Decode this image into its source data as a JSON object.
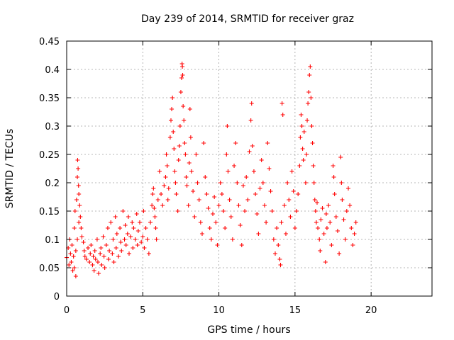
{
  "chart_data": {
    "type": "scatter",
    "title": "Day 239 of 2014, SRMTID for receiver graz",
    "xlabel": "GPS time / hours",
    "ylabel": "SRMTID / TECUs",
    "xlim": [
      0,
      24
    ],
    "ylim": [
      0,
      0.45
    ],
    "xticks": [
      0,
      5,
      10,
      15,
      20
    ],
    "xtick_labels": [
      "0",
      "5",
      "10",
      "15",
      "20"
    ],
    "yticks": [
      0,
      0.05,
      0.1,
      0.15,
      0.2,
      0.25,
      0.3,
      0.35,
      0.4,
      0.45
    ],
    "ytick_labels": [
      "0",
      "0.05",
      "0.1",
      "0.15",
      "0.2",
      "0.25",
      "0.3",
      "0.35",
      "0.4",
      "0.45"
    ],
    "grid": true,
    "marker": "plus",
    "color": "#ff0000",
    "series": [
      {
        "name": "SRMTID",
        "points": [
          [
            0.0,
            0.068
          ],
          [
            0.1,
            0.085
          ],
          [
            0.15,
            0.055
          ],
          [
            0.2,
            0.1
          ],
          [
            0.25,
            0.075
          ],
          [
            0.3,
            0.06
          ],
          [
            0.35,
            0.09
          ],
          [
            0.4,
            0.045
          ],
          [
            0.45,
            0.07
          ],
          [
            0.5,
            0.12
          ],
          [
            0.5,
            0.05
          ],
          [
            0.55,
            0.15
          ],
          [
            0.6,
            0.08
          ],
          [
            0.6,
            0.035
          ],
          [
            0.65,
            0.17
          ],
          [
            0.7,
            0.21
          ],
          [
            0.7,
            0.1
          ],
          [
            0.72,
            0.24
          ],
          [
            0.75,
            0.225
          ],
          [
            0.78,
            0.195
          ],
          [
            0.8,
            0.18
          ],
          [
            0.8,
            0.13
          ],
          [
            0.85,
            0.16
          ],
          [
            0.9,
            0.14
          ],
          [
            0.95,
            0.12
          ],
          [
            1.0,
            0.105
          ],
          [
            1.1,
            0.095
          ],
          [
            1.15,
            0.08
          ],
          [
            1.2,
            0.07
          ],
          [
            1.3,
            0.065
          ],
          [
            1.4,
            0.085
          ],
          [
            1.5,
            0.06
          ],
          [
            1.55,
            0.075
          ],
          [
            1.6,
            0.09
          ],
          [
            1.7,
            0.055
          ],
          [
            1.75,
            0.07
          ],
          [
            1.8,
            0.045
          ],
          [
            1.85,
            0.08
          ],
          [
            1.9,
            0.065
          ],
          [
            2.0,
            0.1
          ],
          [
            2.05,
            0.06
          ],
          [
            2.1,
            0.04
          ],
          [
            2.2,
            0.075
          ],
          [
            2.25,
            0.085
          ],
          [
            2.3,
            0.055
          ],
          [
            2.4,
            0.105
          ],
          [
            2.45,
            0.07
          ],
          [
            2.5,
            0.05
          ],
          [
            2.6,
            0.09
          ],
          [
            2.7,
            0.12
          ],
          [
            2.75,
            0.065
          ],
          [
            2.8,
            0.08
          ],
          [
            2.9,
            0.13
          ],
          [
            3.0,
            0.075
          ],
          [
            3.05,
            0.1
          ],
          [
            3.1,
            0.06
          ],
          [
            3.2,
            0.14
          ],
          [
            3.25,
            0.085
          ],
          [
            3.3,
            0.11
          ],
          [
            3.4,
            0.07
          ],
          [
            3.5,
            0.12
          ],
          [
            3.55,
            0.095
          ],
          [
            3.6,
            0.08
          ],
          [
            3.7,
            0.15
          ],
          [
            3.8,
            0.1
          ],
          [
            3.85,
            0.125
          ],
          [
            3.9,
            0.09
          ],
          [
            4.0,
            0.11
          ],
          [
            4.05,
            0.14
          ],
          [
            4.1,
            0.075
          ],
          [
            4.2,
            0.105
          ],
          [
            4.3,
            0.13
          ],
          [
            4.35,
            0.085
          ],
          [
            4.4,
            0.12
          ],
          [
            4.5,
            0.1
          ],
          [
            4.6,
            0.145
          ],
          [
            4.65,
            0.09
          ],
          [
            4.7,
            0.115
          ],
          [
            4.8,
            0.13
          ],
          [
            4.9,
            0.095
          ],
          [
            5.0,
            0.105
          ],
          [
            5.05,
            0.15
          ],
          [
            5.1,
            0.085
          ],
          [
            5.2,
            0.12
          ],
          [
            5.3,
            0.1
          ],
          [
            5.4,
            0.075
          ],
          [
            5.5,
            0.13
          ],
          [
            5.6,
            0.16
          ],
          [
            5.65,
            0.18
          ],
          [
            5.7,
            0.19
          ],
          [
            5.75,
            0.155
          ],
          [
            5.8,
            0.14
          ],
          [
            5.85,
            0.12
          ],
          [
            5.9,
            0.1
          ],
          [
            6.0,
            0.17
          ],
          [
            6.1,
            0.22
          ],
          [
            6.2,
            0.18
          ],
          [
            6.3,
            0.16
          ],
          [
            6.4,
            0.195
          ],
          [
            6.5,
            0.21
          ],
          [
            6.55,
            0.25
          ],
          [
            6.6,
            0.23
          ],
          [
            6.65,
            0.17
          ],
          [
            6.7,
            0.19
          ],
          [
            6.8,
            0.28
          ],
          [
            6.85,
            0.31
          ],
          [
            6.9,
            0.33
          ],
          [
            6.95,
            0.35
          ],
          [
            7.0,
            0.29
          ],
          [
            7.05,
            0.26
          ],
          [
            7.1,
            0.22
          ],
          [
            7.15,
            0.2
          ],
          [
            7.2,
            0.18
          ],
          [
            7.3,
            0.15
          ],
          [
            7.35,
            0.24
          ],
          [
            7.4,
            0.265
          ],
          [
            7.45,
            0.3
          ],
          [
            7.5,
            0.36
          ],
          [
            7.55,
            0.385
          ],
          [
            7.58,
            0.41
          ],
          [
            7.6,
            0.405
          ],
          [
            7.62,
            0.39
          ],
          [
            7.65,
            0.335
          ],
          [
            7.7,
            0.31
          ],
          [
            7.75,
            0.27
          ],
          [
            7.8,
            0.25
          ],
          [
            7.85,
            0.21
          ],
          [
            7.9,
            0.195
          ],
          [
            8.0,
            0.16
          ],
          [
            8.05,
            0.235
          ],
          [
            8.1,
            0.33
          ],
          [
            8.15,
            0.28
          ],
          [
            8.2,
            0.22
          ],
          [
            8.3,
            0.185
          ],
          [
            8.4,
            0.14
          ],
          [
            8.5,
            0.25
          ],
          [
            8.6,
            0.2
          ],
          [
            8.7,
            0.17
          ],
          [
            8.8,
            0.13
          ],
          [
            8.9,
            0.11
          ],
          [
            9.0,
            0.27
          ],
          [
            9.1,
            0.21
          ],
          [
            9.2,
            0.18
          ],
          [
            9.3,
            0.155
          ],
          [
            9.4,
            0.12
          ],
          [
            9.5,
            0.1
          ],
          [
            9.6,
            0.145
          ],
          [
            9.7,
            0.175
          ],
          [
            9.8,
            0.13
          ],
          [
            9.9,
            0.09
          ],
          [
            10.0,
            0.16
          ],
          [
            10.1,
            0.2
          ],
          [
            10.2,
            0.18
          ],
          [
            10.3,
            0.15
          ],
          [
            10.4,
            0.12
          ],
          [
            10.5,
            0.25
          ],
          [
            10.55,
            0.3
          ],
          [
            10.6,
            0.22
          ],
          [
            10.7,
            0.17
          ],
          [
            10.8,
            0.14
          ],
          [
            10.9,
            0.1
          ],
          [
            11.0,
            0.23
          ],
          [
            11.1,
            0.27
          ],
          [
            11.2,
            0.2
          ],
          [
            11.3,
            0.16
          ],
          [
            11.4,
            0.125
          ],
          [
            11.5,
            0.09
          ],
          [
            11.6,
            0.195
          ],
          [
            11.7,
            0.15
          ],
          [
            11.8,
            0.21
          ],
          [
            11.9,
            0.17
          ],
          [
            12.0,
            0.255
          ],
          [
            12.1,
            0.31
          ],
          [
            12.15,
            0.34
          ],
          [
            12.2,
            0.265
          ],
          [
            12.3,
            0.22
          ],
          [
            12.4,
            0.18
          ],
          [
            12.5,
            0.145
          ],
          [
            12.6,
            0.11
          ],
          [
            12.7,
            0.19
          ],
          [
            12.8,
            0.24
          ],
          [
            12.9,
            0.2
          ],
          [
            13.0,
            0.16
          ],
          [
            13.1,
            0.13
          ],
          [
            13.2,
            0.27
          ],
          [
            13.3,
            0.225
          ],
          [
            13.4,
            0.185
          ],
          [
            13.5,
            0.15
          ],
          [
            13.6,
            0.1
          ],
          [
            13.7,
            0.075
          ],
          [
            13.8,
            0.12
          ],
          [
            13.9,
            0.09
          ],
          [
            14.0,
            0.065
          ],
          [
            14.05,
            0.055
          ],
          [
            14.1,
            0.13
          ],
          [
            14.15,
            0.34
          ],
          [
            14.2,
            0.32
          ],
          [
            14.3,
            0.16
          ],
          [
            14.4,
            0.11
          ],
          [
            14.5,
            0.2
          ],
          [
            14.6,
            0.17
          ],
          [
            14.7,
            0.14
          ],
          [
            14.8,
            0.22
          ],
          [
            14.9,
            0.185
          ],
          [
            15.0,
            0.12
          ],
          [
            15.1,
            0.15
          ],
          [
            15.2,
            0.18
          ],
          [
            15.3,
            0.23
          ],
          [
            15.35,
            0.28
          ],
          [
            15.4,
            0.32
          ],
          [
            15.45,
            0.3
          ],
          [
            15.5,
            0.26
          ],
          [
            15.55,
            0.24
          ],
          [
            15.6,
            0.29
          ],
          [
            15.7,
            0.2
          ],
          [
            15.75,
            0.25
          ],
          [
            15.8,
            0.31
          ],
          [
            15.85,
            0.34
          ],
          [
            15.9,
            0.36
          ],
          [
            15.95,
            0.39
          ],
          [
            16.0,
            0.405
          ],
          [
            16.05,
            0.35
          ],
          [
            16.1,
            0.3
          ],
          [
            16.15,
            0.27
          ],
          [
            16.2,
            0.23
          ],
          [
            16.25,
            0.2
          ],
          [
            16.3,
            0.17
          ],
          [
            16.35,
            0.15
          ],
          [
            16.4,
            0.13
          ],
          [
            16.45,
            0.165
          ],
          [
            16.5,
            0.12
          ],
          [
            16.6,
            0.1
          ],
          [
            16.65,
            0.08
          ],
          [
            16.7,
            0.135
          ],
          [
            16.8,
            0.155
          ],
          [
            16.9,
            0.11
          ],
          [
            17.0,
            0.06
          ],
          [
            17.05,
            0.145
          ],
          [
            17.1,
            0.12
          ],
          [
            17.2,
            0.16
          ],
          [
            17.3,
            0.13
          ],
          [
            17.4,
            0.09
          ],
          [
            17.5,
            0.23
          ],
          [
            17.55,
            0.21
          ],
          [
            17.6,
            0.18
          ],
          [
            17.7,
            0.14
          ],
          [
            17.8,
            0.115
          ],
          [
            17.9,
            0.075
          ],
          [
            18.0,
            0.245
          ],
          [
            18.05,
            0.2
          ],
          [
            18.1,
            0.17
          ],
          [
            18.2,
            0.135
          ],
          [
            18.3,
            0.1
          ],
          [
            18.4,
            0.15
          ],
          [
            18.5,
            0.19
          ],
          [
            18.6,
            0.16
          ],
          [
            18.7,
            0.12
          ],
          [
            18.8,
            0.09
          ],
          [
            18.9,
            0.11
          ],
          [
            19.0,
            0.13
          ]
        ]
      }
    ]
  }
}
